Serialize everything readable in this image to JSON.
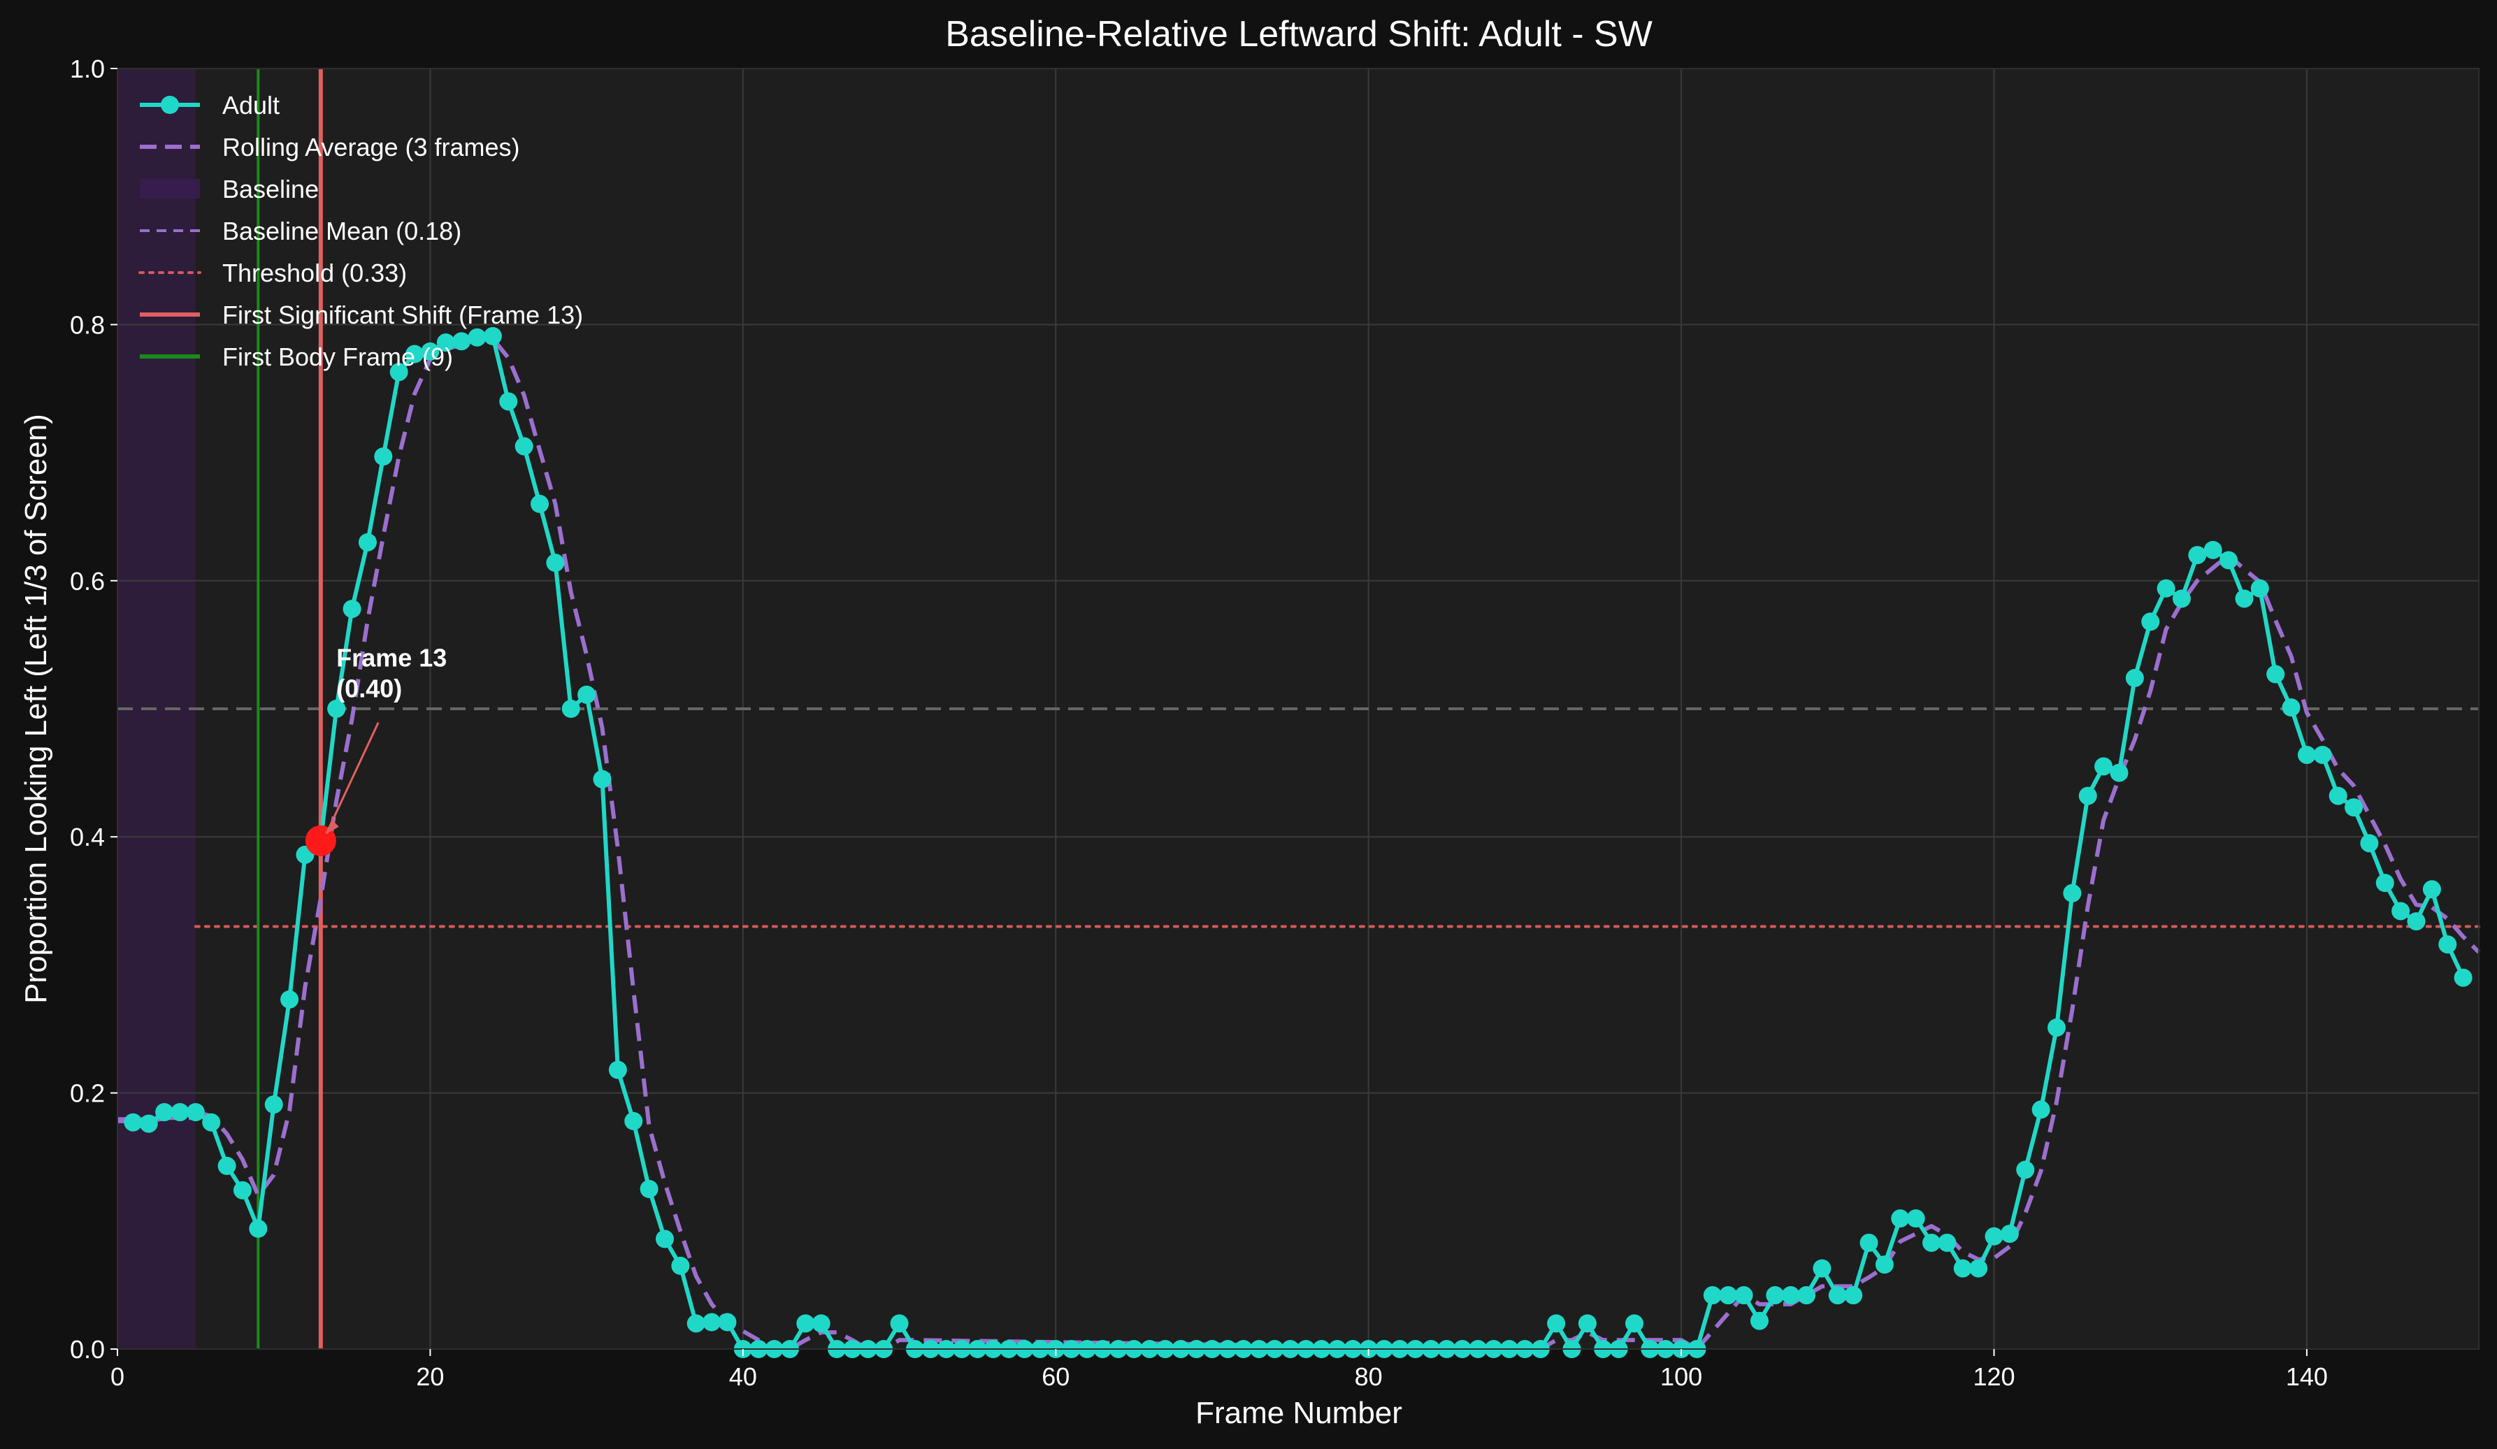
{
  "chart_data": {
    "type": "line",
    "title": "Baseline-Relative Leftward Shift: Adult - SW",
    "xlabel": "Frame Number",
    "ylabel": "Proportion Looking Left (Left 1/3 of Screen)",
    "xlim": [
      0,
      151
    ],
    "ylim": [
      0,
      1.0
    ],
    "xticks": [
      0,
      20,
      40,
      60,
      80,
      100,
      120,
      140
    ],
    "yticks": [
      0.0,
      0.2,
      0.4,
      0.6,
      0.8,
      1.0
    ],
    "x_tick_labels": [
      "0",
      "20",
      "40",
      "60",
      "80",
      "100",
      "120",
      "140"
    ],
    "y_tick_labels": [
      "0.0",
      "0.2",
      "0.4",
      "0.6",
      "0.8",
      "1.0"
    ],
    "grid": true,
    "legend_position": "upper-left",
    "series": [
      {
        "name": "Adult",
        "color": "#20d8c8",
        "style": "solid-with-markers",
        "x": [
          1,
          2,
          3,
          4,
          5,
          6,
          7,
          8,
          9,
          10,
          11,
          12,
          13,
          14,
          15,
          16,
          17,
          18,
          19,
          20,
          21,
          22,
          23,
          24,
          25,
          26,
          27,
          28,
          29,
          30,
          31,
          32,
          33,
          34,
          35,
          36,
          37,
          38,
          39,
          40,
          41,
          42,
          43,
          44,
          45,
          46,
          47,
          48,
          49,
          50,
          51,
          52,
          53,
          54,
          55,
          56,
          57,
          58,
          59,
          60,
          61,
          62,
          63,
          64,
          65,
          66,
          67,
          68,
          69,
          70,
          71,
          72,
          73,
          74,
          75,
          76,
          77,
          78,
          79,
          80,
          81,
          82,
          83,
          84,
          85,
          86,
          87,
          88,
          89,
          90,
          91,
          92,
          93,
          94,
          95,
          96,
          97,
          98,
          99,
          100,
          101,
          102,
          103,
          104,
          105,
          106,
          107,
          108,
          109,
          110,
          111,
          112,
          113,
          114,
          115,
          116,
          117,
          118,
          119,
          120,
          121,
          122,
          123,
          124,
          125,
          126,
          127,
          128,
          129,
          130,
          131,
          132,
          133,
          134,
          135,
          136,
          137,
          138,
          139,
          140,
          141,
          142,
          143,
          144,
          145,
          146,
          147,
          148,
          149,
          150
        ],
        "y": [
          0.177,
          0.176,
          0.185,
          0.185,
          0.185,
          0.177,
          0.143,
          0.124,
          0.094,
          0.191,
          0.273,
          0.386,
          0.397,
          0.5,
          0.578,
          0.63,
          0.697,
          0.763,
          0.777,
          0.779,
          0.786,
          0.787,
          0.79,
          0.791,
          0.74,
          0.705,
          0.66,
          0.614,
          0.5,
          0.511,
          0.445,
          0.218,
          0.178,
          0.125,
          0.086,
          0.065,
          0.02,
          0.021,
          0.021,
          0.0,
          0.0,
          0.0,
          0.0,
          0.02,
          0.02,
          0.0,
          0.0,
          0.0,
          0.0,
          0.02,
          0.0,
          0.0,
          0.0,
          0.0,
          0.0,
          0.0,
          0.0,
          0.0,
          0.0,
          0.0,
          0.0,
          0.0,
          0.0,
          0.0,
          0.0,
          0.0,
          0.0,
          0.0,
          0.0,
          0.0,
          0.0,
          0.0,
          0.0,
          0.0,
          0.0,
          0.0,
          0.0,
          0.0,
          0.0,
          0.0,
          0.0,
          0.0,
          0.0,
          0.0,
          0.0,
          0.0,
          0.0,
          0.0,
          0.0,
          0.0,
          0.0,
          0.02,
          0.0,
          0.02,
          0.0,
          0.0,
          0.02,
          0.0,
          0.0,
          0.0,
          0.0,
          0.042,
          0.042,
          0.042,
          0.022,
          0.042,
          0.042,
          0.042,
          0.063,
          0.042,
          0.042,
          0.083,
          0.066,
          0.102,
          0.102,
          0.083,
          0.083,
          0.063,
          0.063,
          0.088,
          0.09,
          0.14,
          0.187,
          0.251,
          0.356,
          0.432,
          0.455,
          0.45,
          0.524,
          0.568,
          0.594,
          0.586,
          0.62,
          0.624,
          0.616,
          0.586,
          0.594,
          0.527,
          0.501,
          0.464,
          0.464,
          0.432,
          0.423,
          0.395,
          0.364,
          0.342,
          0.334,
          0.359,
          0.316,
          0.29
        ]
      },
      {
        "name": "Rolling Average (3 frames)",
        "color": "#9b6fcf",
        "style": "dashed",
        "x": [
          0,
          1,
          2,
          3,
          4,
          5,
          6,
          7,
          8,
          9,
          10,
          11,
          12,
          13,
          14,
          15,
          16,
          17,
          18,
          19,
          20,
          21,
          22,
          23,
          24,
          25,
          26,
          27,
          28,
          29,
          30,
          31,
          32,
          33,
          34,
          35,
          36,
          37,
          38,
          39,
          40,
          41,
          42,
          43,
          44,
          45,
          46,
          47,
          48,
          49,
          50,
          51,
          90,
          91,
          92,
          93,
          94,
          95,
          96,
          97,
          98,
          99,
          100,
          101,
          102,
          103,
          104,
          105,
          106,
          107,
          108,
          109,
          110,
          111,
          112,
          113,
          114,
          115,
          116,
          117,
          118,
          119,
          120,
          121,
          122,
          123,
          124,
          125,
          126,
          127,
          128,
          129,
          130,
          131,
          132,
          133,
          134,
          135,
          136,
          137,
          138,
          139,
          140,
          141,
          142,
          143,
          144,
          145,
          146,
          147,
          148,
          149,
          150,
          151
        ],
        "y": [
          0.178,
          0.178,
          0.178,
          0.18,
          0.183,
          0.185,
          0.182,
          0.168,
          0.148,
          0.12,
          0.136,
          0.186,
          0.283,
          0.352,
          0.428,
          0.492,
          0.569,
          0.635,
          0.697,
          0.746,
          0.773,
          0.781,
          0.784,
          0.788,
          0.789,
          0.774,
          0.745,
          0.702,
          0.66,
          0.591,
          0.542,
          0.485,
          0.391,
          0.28,
          0.174,
          0.13,
          0.092,
          0.057,
          0.035,
          0.021,
          0.014,
          0.007,
          0.0,
          0.0,
          0.007,
          0.013,
          0.013,
          0.007,
          0.0,
          0.0,
          0.007,
          0.007,
          0.0,
          0.0,
          0.007,
          0.007,
          0.013,
          0.007,
          0.007,
          0.007,
          0.007,
          0.007,
          0.007,
          0.0,
          0.014,
          0.028,
          0.042,
          0.035,
          0.035,
          0.035,
          0.042,
          0.049,
          0.049,
          0.049,
          0.056,
          0.064,
          0.084,
          0.09,
          0.096,
          0.089,
          0.076,
          0.07,
          0.071,
          0.08,
          0.106,
          0.139,
          0.193,
          0.265,
          0.346,
          0.413,
          0.446,
          0.476,
          0.514,
          0.562,
          0.583,
          0.6,
          0.61,
          0.62,
          0.609,
          0.599,
          0.569,
          0.541,
          0.497,
          0.476,
          0.453,
          0.44,
          0.417,
          0.394,
          0.367,
          0.347,
          0.345,
          0.336,
          0.322,
          0.31
        ]
      }
    ],
    "baseline_region": {
      "name": "Baseline",
      "x_start": 0,
      "x_end": 5,
      "color": "#3a1d52"
    },
    "reference_lines": [
      {
        "name": "Baseline Mean (0.18)",
        "orientation": "horizontal",
        "value": 0.18,
        "color": "#9b6fcf",
        "style": "dashed",
        "x_start": 0,
        "x_end": 5
      },
      {
        "name": "Threshold (0.33)",
        "orientation": "horizontal",
        "value": 0.33,
        "color": "#d45a5a",
        "style": "dotted",
        "x_start": 5,
        "x_end": 151
      },
      {
        "name": "",
        "orientation": "horizontal",
        "value": 0.5,
        "color": "#666666",
        "style": "dashed",
        "x_start": 0,
        "x_end": 151
      },
      {
        "name": "First Significant Shift (Frame 13)",
        "orientation": "vertical",
        "value": 13,
        "color": "#e06060",
        "style": "solid"
      },
      {
        "name": "First Body Frame (9)",
        "orientation": "vertical",
        "value": 9,
        "color": "#1a8a1a",
        "style": "solid"
      }
    ],
    "highlight_point": {
      "x": 13,
      "y": 0.397,
      "color": "#ff1a1a"
    },
    "annotation": {
      "line1": "Frame 13",
      "line2": "(0.40)",
      "text_x": 14,
      "text_y": 0.51,
      "arrow_to_x": 13,
      "arrow_to_y": 0.397,
      "color": "#e06060"
    },
    "legend": [
      {
        "label": "Adult",
        "kind": "line-marker",
        "color": "#20d8c8"
      },
      {
        "label": "Rolling Average (3 frames)",
        "kind": "dashed",
        "color": "#9b6fcf"
      },
      {
        "label": "Baseline",
        "kind": "patch",
        "color": "#3a1d52"
      },
      {
        "label": "Baseline Mean (0.18)",
        "kind": "dashed-thin",
        "color": "#9b6fcf"
      },
      {
        "label": "Threshold (0.33)",
        "kind": "dotted",
        "color": "#d45a5a"
      },
      {
        "label": "First Significant Shift (Frame 13)",
        "kind": "solid",
        "color": "#e06060"
      },
      {
        "label": "First Body Frame (9)",
        "kind": "solid",
        "color": "#1a8a1a"
      }
    ]
  }
}
